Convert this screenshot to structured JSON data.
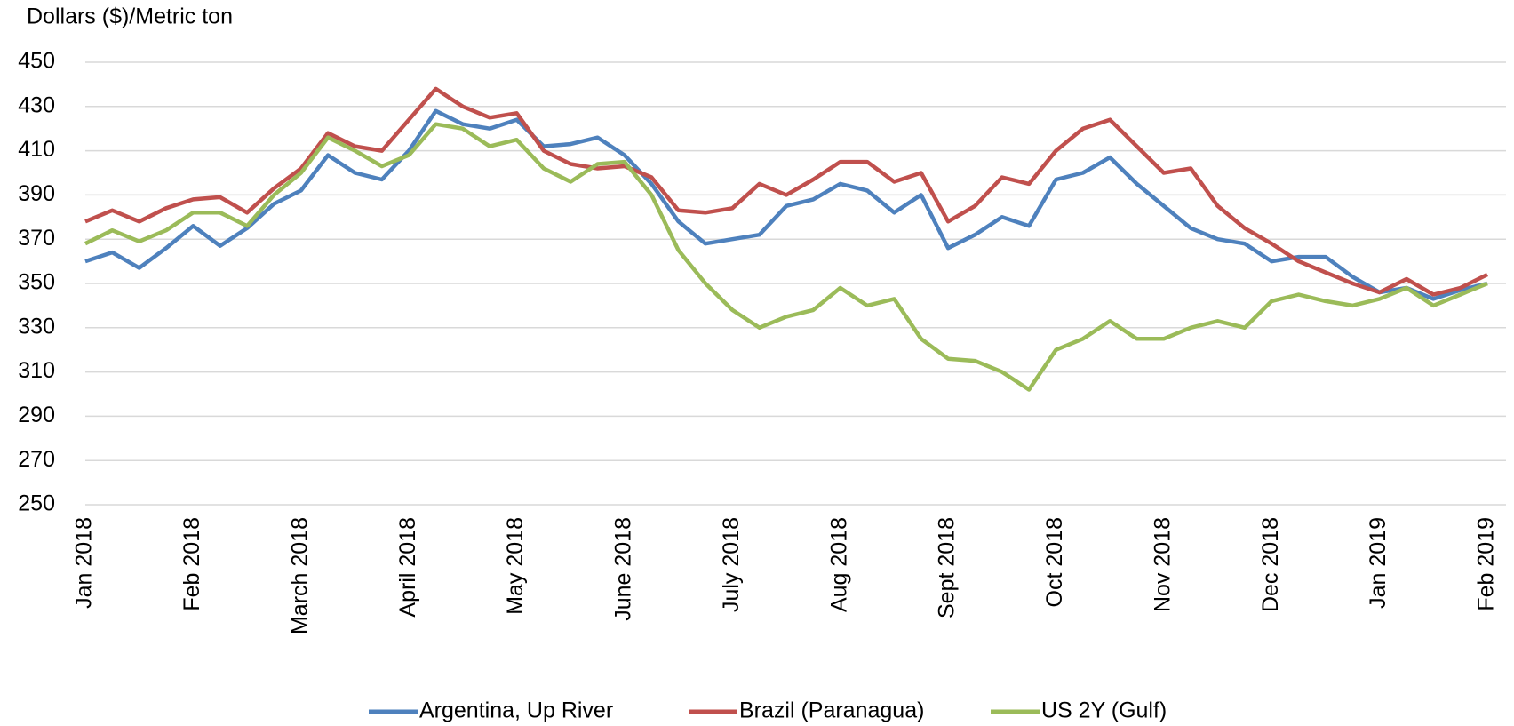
{
  "chart_data": {
    "type": "line",
    "y_label": "Dollars ($)/Metric ton",
    "categories": [
      "Jan 2018",
      null,
      null,
      null,
      "Feb 2018",
      null,
      null,
      null,
      "March 2018",
      null,
      null,
      null,
      "April 2018",
      null,
      null,
      null,
      "May 2018",
      null,
      null,
      null,
      "June 2018",
      null,
      null,
      null,
      "July 2018",
      null,
      null,
      null,
      "Aug 2018",
      null,
      null,
      null,
      "Sept 2018",
      null,
      null,
      null,
      "Oct 2018",
      null,
      null,
      null,
      "Nov 2018",
      null,
      null,
      null,
      "Dec 2018",
      null,
      null,
      null,
      "Jan 2019",
      null,
      null,
      null,
      "Feb 2019"
    ],
    "series": [
      {
        "name": "Argentina, Up River",
        "color": "#4e81bd",
        "values": [
          360,
          364,
          357,
          366,
          376,
          367,
          375,
          386,
          392,
          408,
          400,
          397,
          410,
          428,
          422,
          420,
          424,
          412,
          413,
          416,
          408,
          395,
          378,
          368,
          370,
          372,
          385,
          388,
          395,
          392,
          382,
          390,
          366,
          372,
          380,
          376,
          397,
          400,
          407,
          395,
          385,
          375,
          370,
          368,
          360,
          362,
          362,
          353,
          346,
          348,
          343,
          347,
          350
        ]
      },
      {
        "name": "Brazil (Paranagua)",
        "color": "#c0504d",
        "values": [
          378,
          383,
          378,
          384,
          388,
          389,
          382,
          393,
          402,
          418,
          412,
          410,
          424,
          438,
          430,
          425,
          427,
          410,
          404,
          402,
          403,
          398,
          383,
          382,
          384,
          395,
          390,
          397,
          405,
          405,
          396,
          400,
          378,
          385,
          398,
          395,
          410,
          420,
          424,
          412,
          400,
          402,
          385,
          375,
          368,
          360,
          355,
          350,
          346,
          352,
          345,
          348,
          354
        ]
      },
      {
        "name": "US 2Y (Gulf)",
        "color": "#9bbb59",
        "values": [
          368,
          374,
          369,
          374,
          382,
          382,
          376,
          390,
          400,
          416,
          410,
          403,
          408,
          422,
          420,
          412,
          415,
          402,
          396,
          404,
          405,
          390,
          365,
          350,
          338,
          330,
          335,
          338,
          348,
          340,
          343,
          325,
          316,
          315,
          310,
          302,
          320,
          325,
          333,
          325,
          325,
          330,
          333,
          330,
          342,
          345,
          342,
          340,
          343,
          348,
          340,
          345,
          350
        ]
      }
    ],
    "ylim": [
      250,
      450
    ],
    "yticks": [
      250,
      270,
      290,
      310,
      330,
      350,
      370,
      390,
      410,
      430,
      450
    ],
    "grid": true,
    "legend": "bottom"
  }
}
